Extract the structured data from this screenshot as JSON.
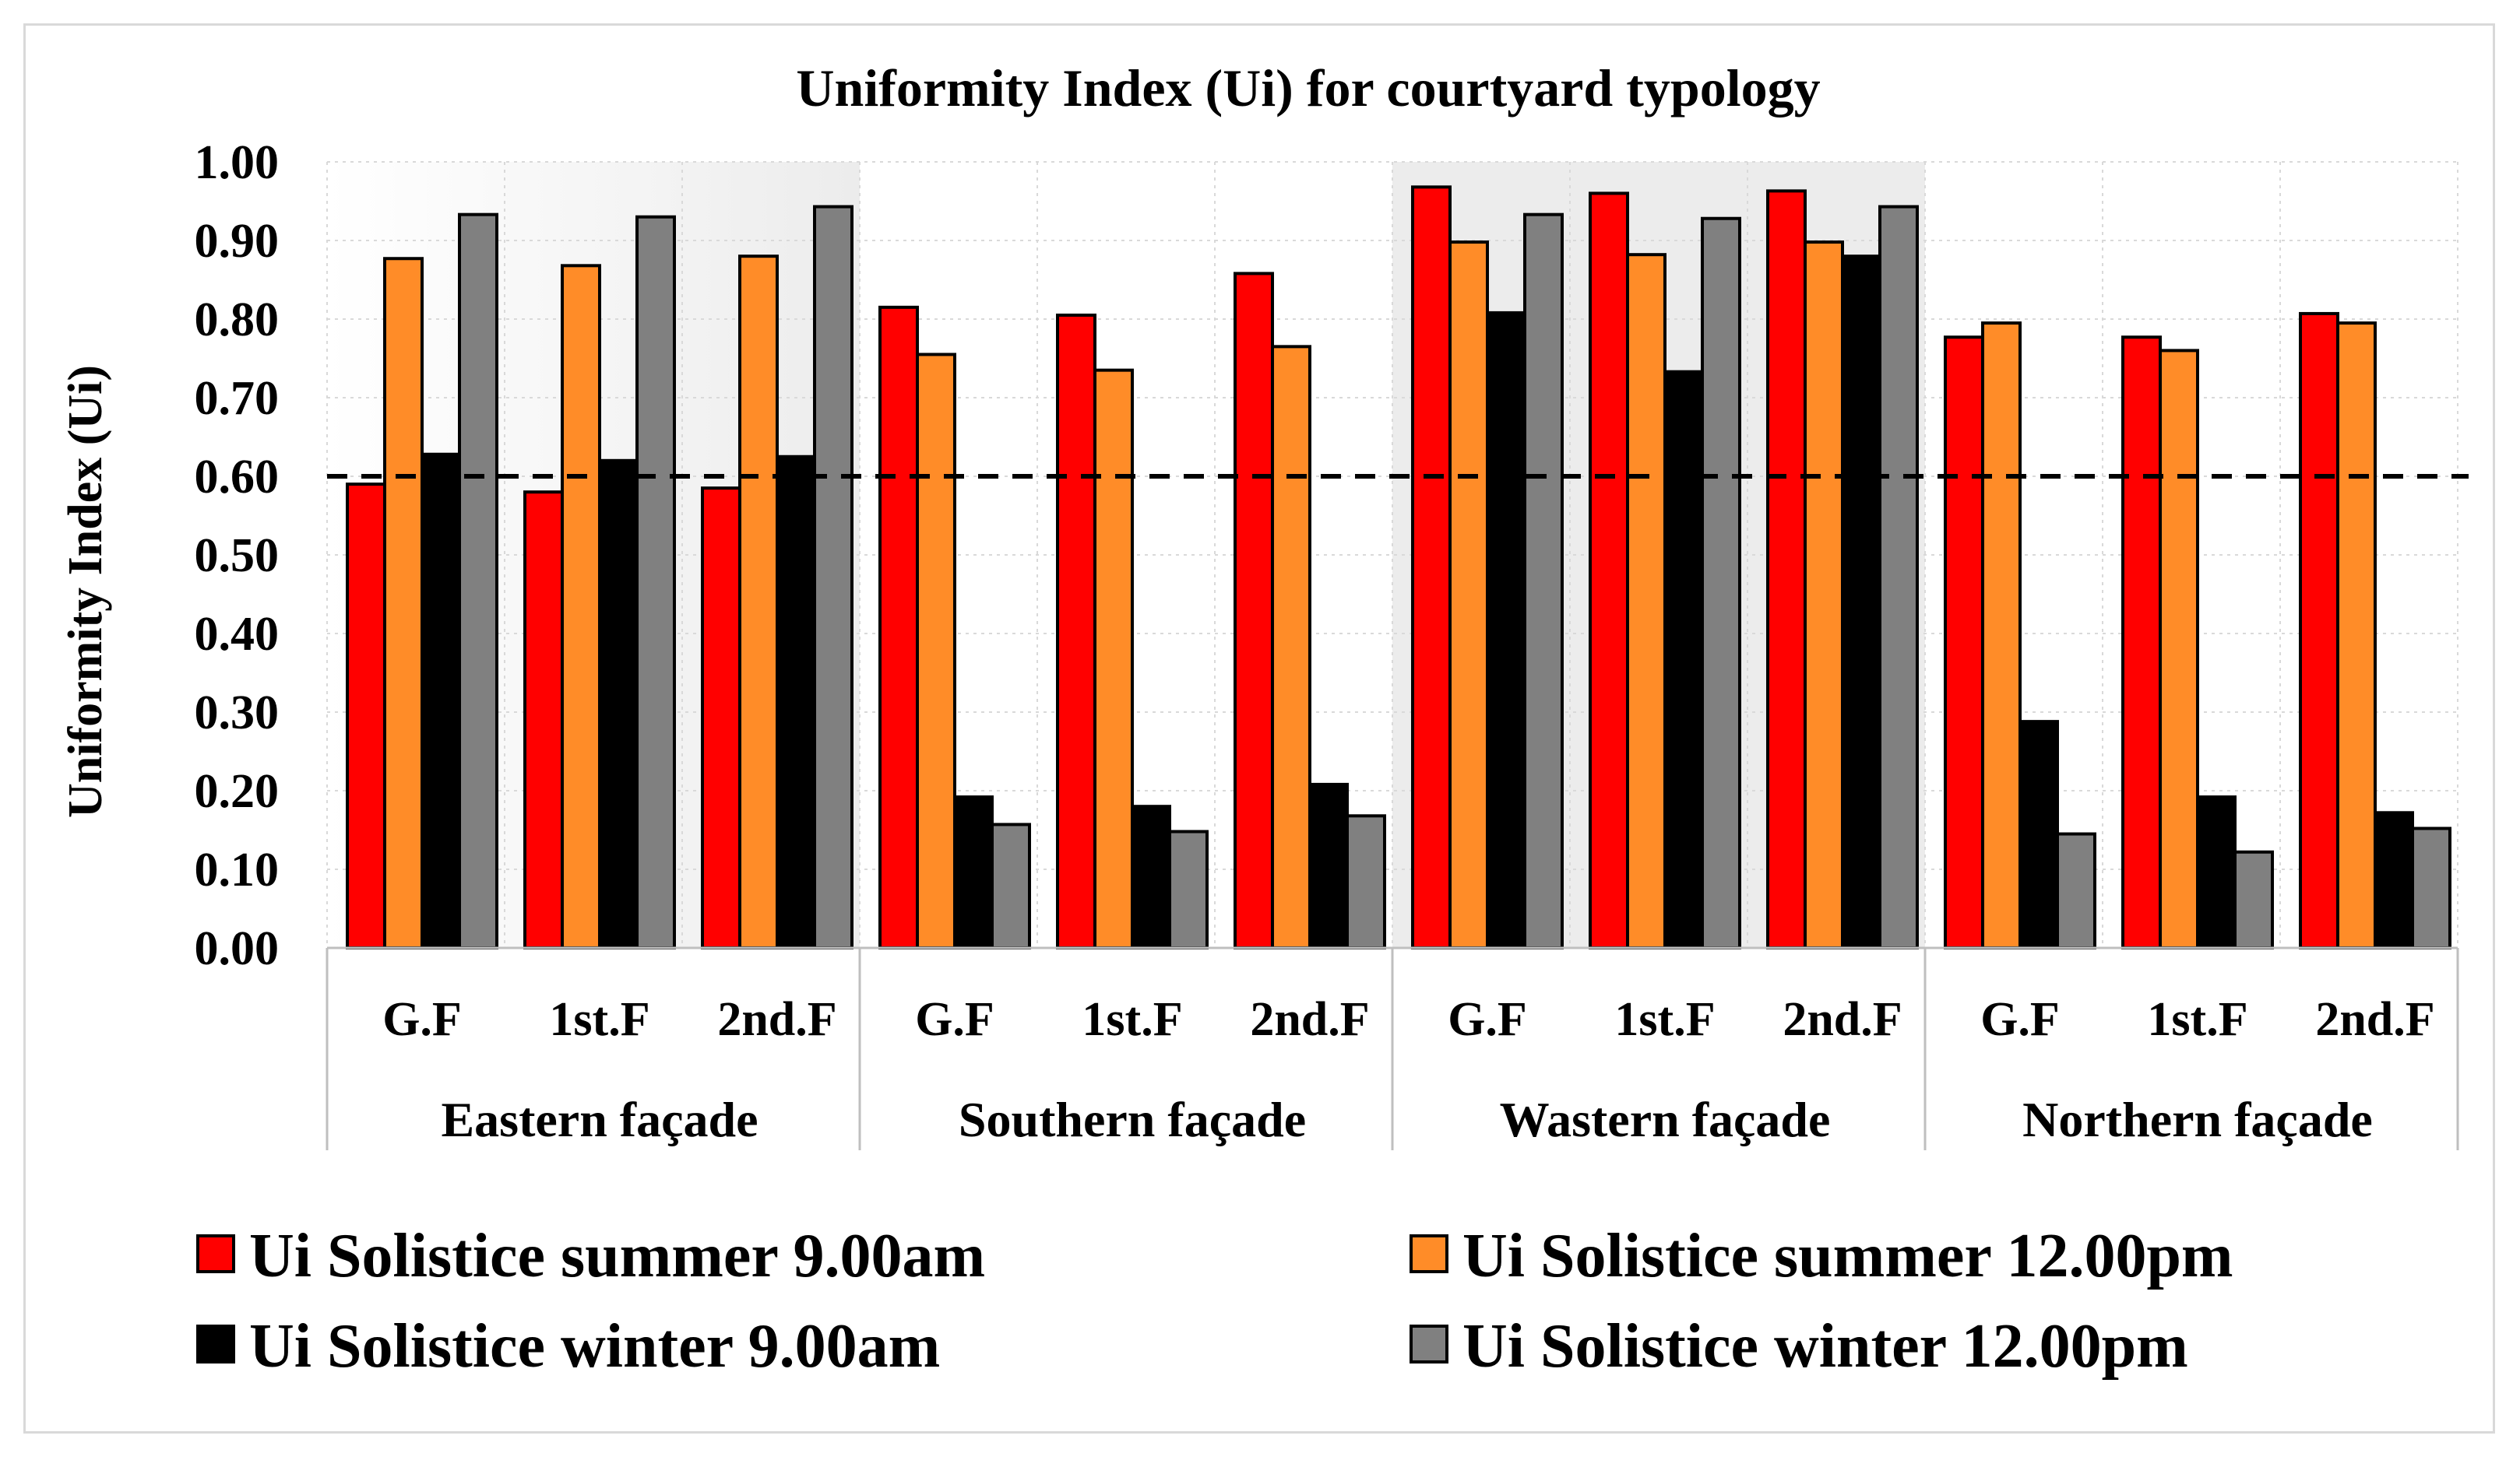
{
  "chart_data": {
    "type": "bar",
    "title": "Uniformity Index (Ui) for courtyard typology",
    "ylabel": "Uniformity Index (Ui)",
    "xlabel": "",
    "ylim": [
      0,
      1.0
    ],
    "yticks": [
      "0.00",
      "0.10",
      "0.20",
      "0.30",
      "0.40",
      "0.50",
      "0.60",
      "0.70",
      "0.80",
      "0.90",
      "1.00"
    ],
    "reference_line": {
      "value": 0.6,
      "style": "dashed",
      "color": "#000000"
    },
    "groups": [
      {
        "label": "Eastern façade",
        "categories": [
          "G.F",
          "1st.F",
          "2nd.F"
        ]
      },
      {
        "label": "Southern façade",
        "categories": [
          "G.F",
          "1st.F",
          "2nd.F"
        ]
      },
      {
        "label": "Wastern façade",
        "categories": [
          "G.F",
          "1st.F",
          "2nd.F"
        ]
      },
      {
        "label": "Northern façade",
        "categories": [
          "G.F",
          "1st.F",
          "2nd.F"
        ]
      }
    ],
    "series": [
      {
        "name": "Ui Solistice summer 9.00am",
        "color": "#ff0000",
        "values": [
          0.59,
          0.58,
          0.585,
          0.815,
          0.805,
          0.858,
          0.968,
          0.96,
          0.963,
          0.777,
          0.777,
          0.807
        ]
      },
      {
        "name": "Ui Solistice summer 12.00pm",
        "color": "#ff8c28",
        "values": [
          0.877,
          0.868,
          0.88,
          0.755,
          0.735,
          0.765,
          0.898,
          0.882,
          0.898,
          0.795,
          0.76,
          0.795
        ]
      },
      {
        "name": "Ui Solistice winter 9.00am",
        "color": "#000000",
        "values": [
          0.628,
          0.62,
          0.625,
          0.192,
          0.18,
          0.208,
          0.808,
          0.733,
          0.88,
          0.288,
          0.192,
          0.172
        ]
      },
      {
        "name": "Ui Solistice winter 12.00pm",
        "color": "#808080",
        "values": [
          0.933,
          0.93,
          0.943,
          0.157,
          0.148,
          0.168,
          0.933,
          0.928,
          0.943,
          0.145,
          0.122,
          0.152
        ]
      }
    ],
    "legend_position": "bottom"
  }
}
